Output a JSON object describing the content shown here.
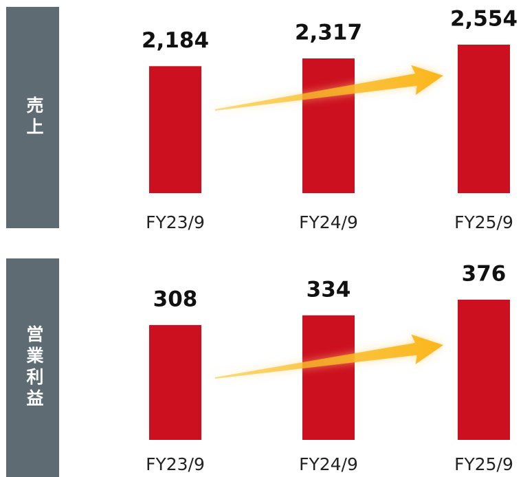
{
  "chart_data": [
    {
      "type": "bar",
      "title": "売上",
      "categories": [
        "FY23/9",
        "FY24/9",
        "FY25/9"
      ],
      "values": [
        2184,
        2317,
        2554
      ],
      "value_labels": [
        "2,184",
        "2,317",
        "2,554"
      ],
      "color": "#cc1020"
    },
    {
      "type": "bar",
      "title": "営業利益",
      "categories": [
        "FY23/9",
        "FY24/9",
        "FY25/9"
      ],
      "values": [
        308,
        334,
        376
      ],
      "value_labels": [
        "308",
        "334",
        "376"
      ],
      "color": "#cc1020"
    }
  ]
}
